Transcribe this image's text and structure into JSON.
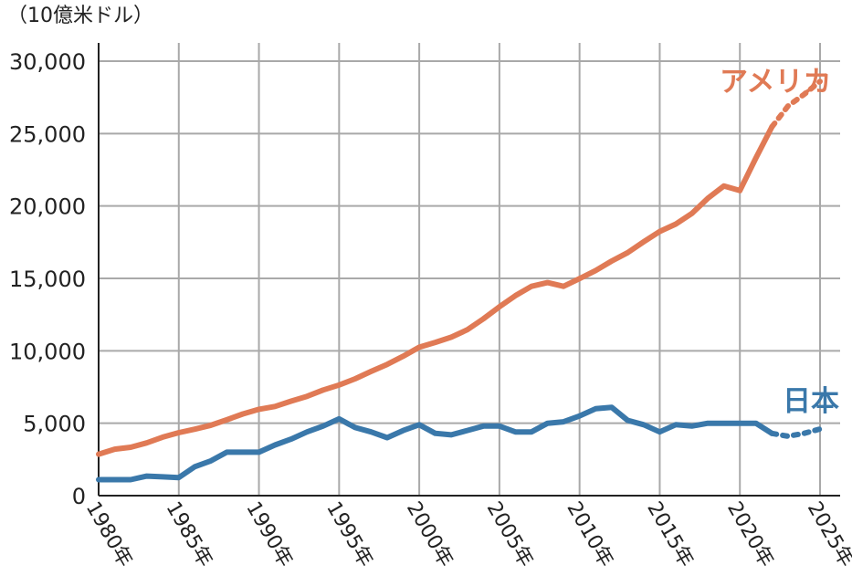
{
  "chart_data": {
    "type": "line",
    "ylabel": "（10億米ドル）",
    "ylim": [
      0,
      30000
    ],
    "xlim": [
      1980,
      2025
    ],
    "grid": true,
    "y_ticks": [
      {
        "value": 0,
        "label": "0"
      },
      {
        "value": 5000,
        "label": "5,000"
      },
      {
        "value": 10000,
        "label": "10,000"
      },
      {
        "value": 15000,
        "label": "15,000"
      },
      {
        "value": 20000,
        "label": "20,000"
      },
      {
        "value": 25000,
        "label": "25,000"
      },
      {
        "value": 30000,
        "label": "30,000"
      }
    ],
    "x_ticks": [
      {
        "value": 1980,
        "label": "1980年"
      },
      {
        "value": 1985,
        "label": "1985年"
      },
      {
        "value": 1990,
        "label": "1990年"
      },
      {
        "value": 1995,
        "label": "1995年"
      },
      {
        "value": 2000,
        "label": "2000年"
      },
      {
        "value": 2005,
        "label": "2005年"
      },
      {
        "value": 2010,
        "label": "2010年"
      },
      {
        "value": 2015,
        "label": "2015年"
      },
      {
        "value": 2020,
        "label": "2020年"
      },
      {
        "value": 2025,
        "label": "2025年"
      }
    ],
    "series": [
      {
        "name": "アメリカ",
        "color": "#e07a55",
        "x": [
          1980,
          1981,
          1982,
          1983,
          1984,
          1985,
          1986,
          1987,
          1988,
          1989,
          1990,
          1991,
          1992,
          1993,
          1994,
          1995,
          1996,
          1997,
          1998,
          1999,
          2000,
          2001,
          2002,
          2003,
          2004,
          2005,
          2006,
          2007,
          2008,
          2009,
          2010,
          2011,
          2012,
          2013,
          2014,
          2015,
          2016,
          2017,
          2018,
          2019,
          2020,
          2021,
          2022
        ],
        "values": [
          2860,
          3210,
          3340,
          3640,
          4040,
          4350,
          4590,
          4860,
          5240,
          5640,
          5960,
          6160,
          6520,
          6860,
          7290,
          7640,
          8070,
          8580,
          9060,
          9630,
          10250,
          10580,
          10940,
          11460,
          12210,
          13040,
          13810,
          14450,
          14710,
          14450,
          14990,
          15540,
          16200,
          16780,
          17530,
          18240,
          18750,
          19480,
          20530,
          21380,
          21060,
          23320,
          25460
        ],
        "projection_x": [
          2022,
          2023,
          2024,
          2025
        ],
        "projection_values": [
          25460,
          26900,
          27700,
          28600
        ]
      },
      {
        "name": "日本",
        "color": "#3a78aa",
        "x": [
          1980,
          1981,
          1982,
          1983,
          1984,
          1985,
          1986,
          1987,
          1988,
          1989,
          1990,
          1991,
          1992,
          1993,
          1994,
          1995,
          1996,
          1997,
          1998,
          1999,
          2000,
          2001,
          2002,
          2003,
          2004,
          2005,
          2006,
          2007,
          2008,
          2009,
          2010,
          2011,
          2012,
          2013,
          2014,
          2015,
          2016,
          2017,
          2018,
          2019,
          2020,
          2021,
          2022
        ],
        "values": [
          1100,
          1100,
          1100,
          1350,
          1300,
          1250,
          2000,
          2400,
          3000,
          3000,
          3000,
          3500,
          3900,
          4400,
          4800,
          5300,
          4700,
          4400,
          4000,
          4500,
          4900,
          4300,
          4200,
          4500,
          4800,
          4800,
          4400,
          4400,
          5000,
          5100,
          5500,
          6000,
          6100,
          5200,
          4900,
          4400,
          4900,
          4800,
          5000,
          5000,
          5000,
          5000,
          4300
        ],
        "projection_x": [
          2022,
          2023,
          2024,
          2025
        ],
        "projection_values": [
          4300,
          4100,
          4300,
          4600
        ]
      }
    ]
  }
}
